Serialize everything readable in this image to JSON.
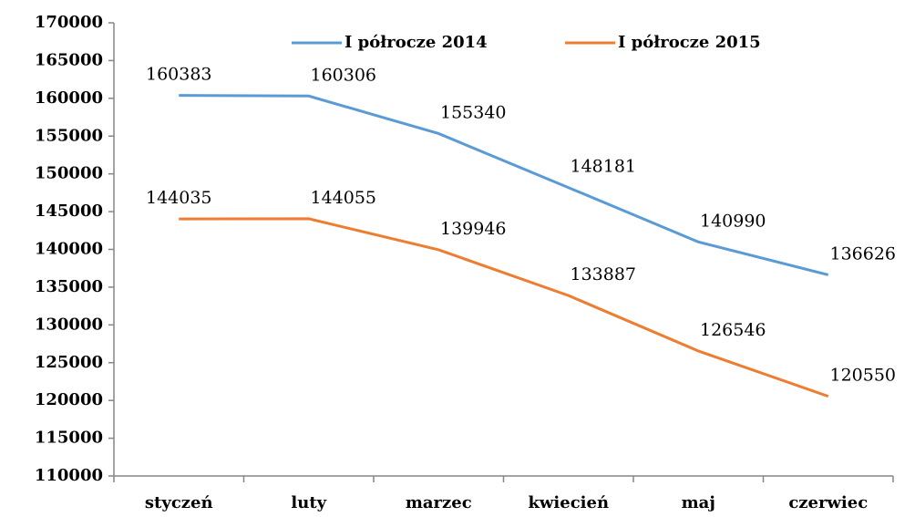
{
  "chart_data": {
    "type": "line",
    "categories": [
      "styczeń",
      "luty",
      "marzec",
      "kwiecień",
      "maj",
      "czerwiec"
    ],
    "series": [
      {
        "name": "I półrocze 2014",
        "color": "#5b9bd5",
        "values": [
          160383,
          160306,
          155340,
          148181,
          140990,
          136626
        ]
      },
      {
        "name": "I półrocze 2015",
        "color": "#ed7d31",
        "values": [
          144035,
          144055,
          139946,
          133887,
          126546,
          120550
        ]
      }
    ],
    "ylim": [
      110000,
      170000
    ],
    "yticks": [
      110000,
      115000,
      120000,
      125000,
      130000,
      135000,
      140000,
      145000,
      150000,
      155000,
      160000,
      165000,
      170000
    ],
    "grid": false,
    "legend": "top"
  }
}
